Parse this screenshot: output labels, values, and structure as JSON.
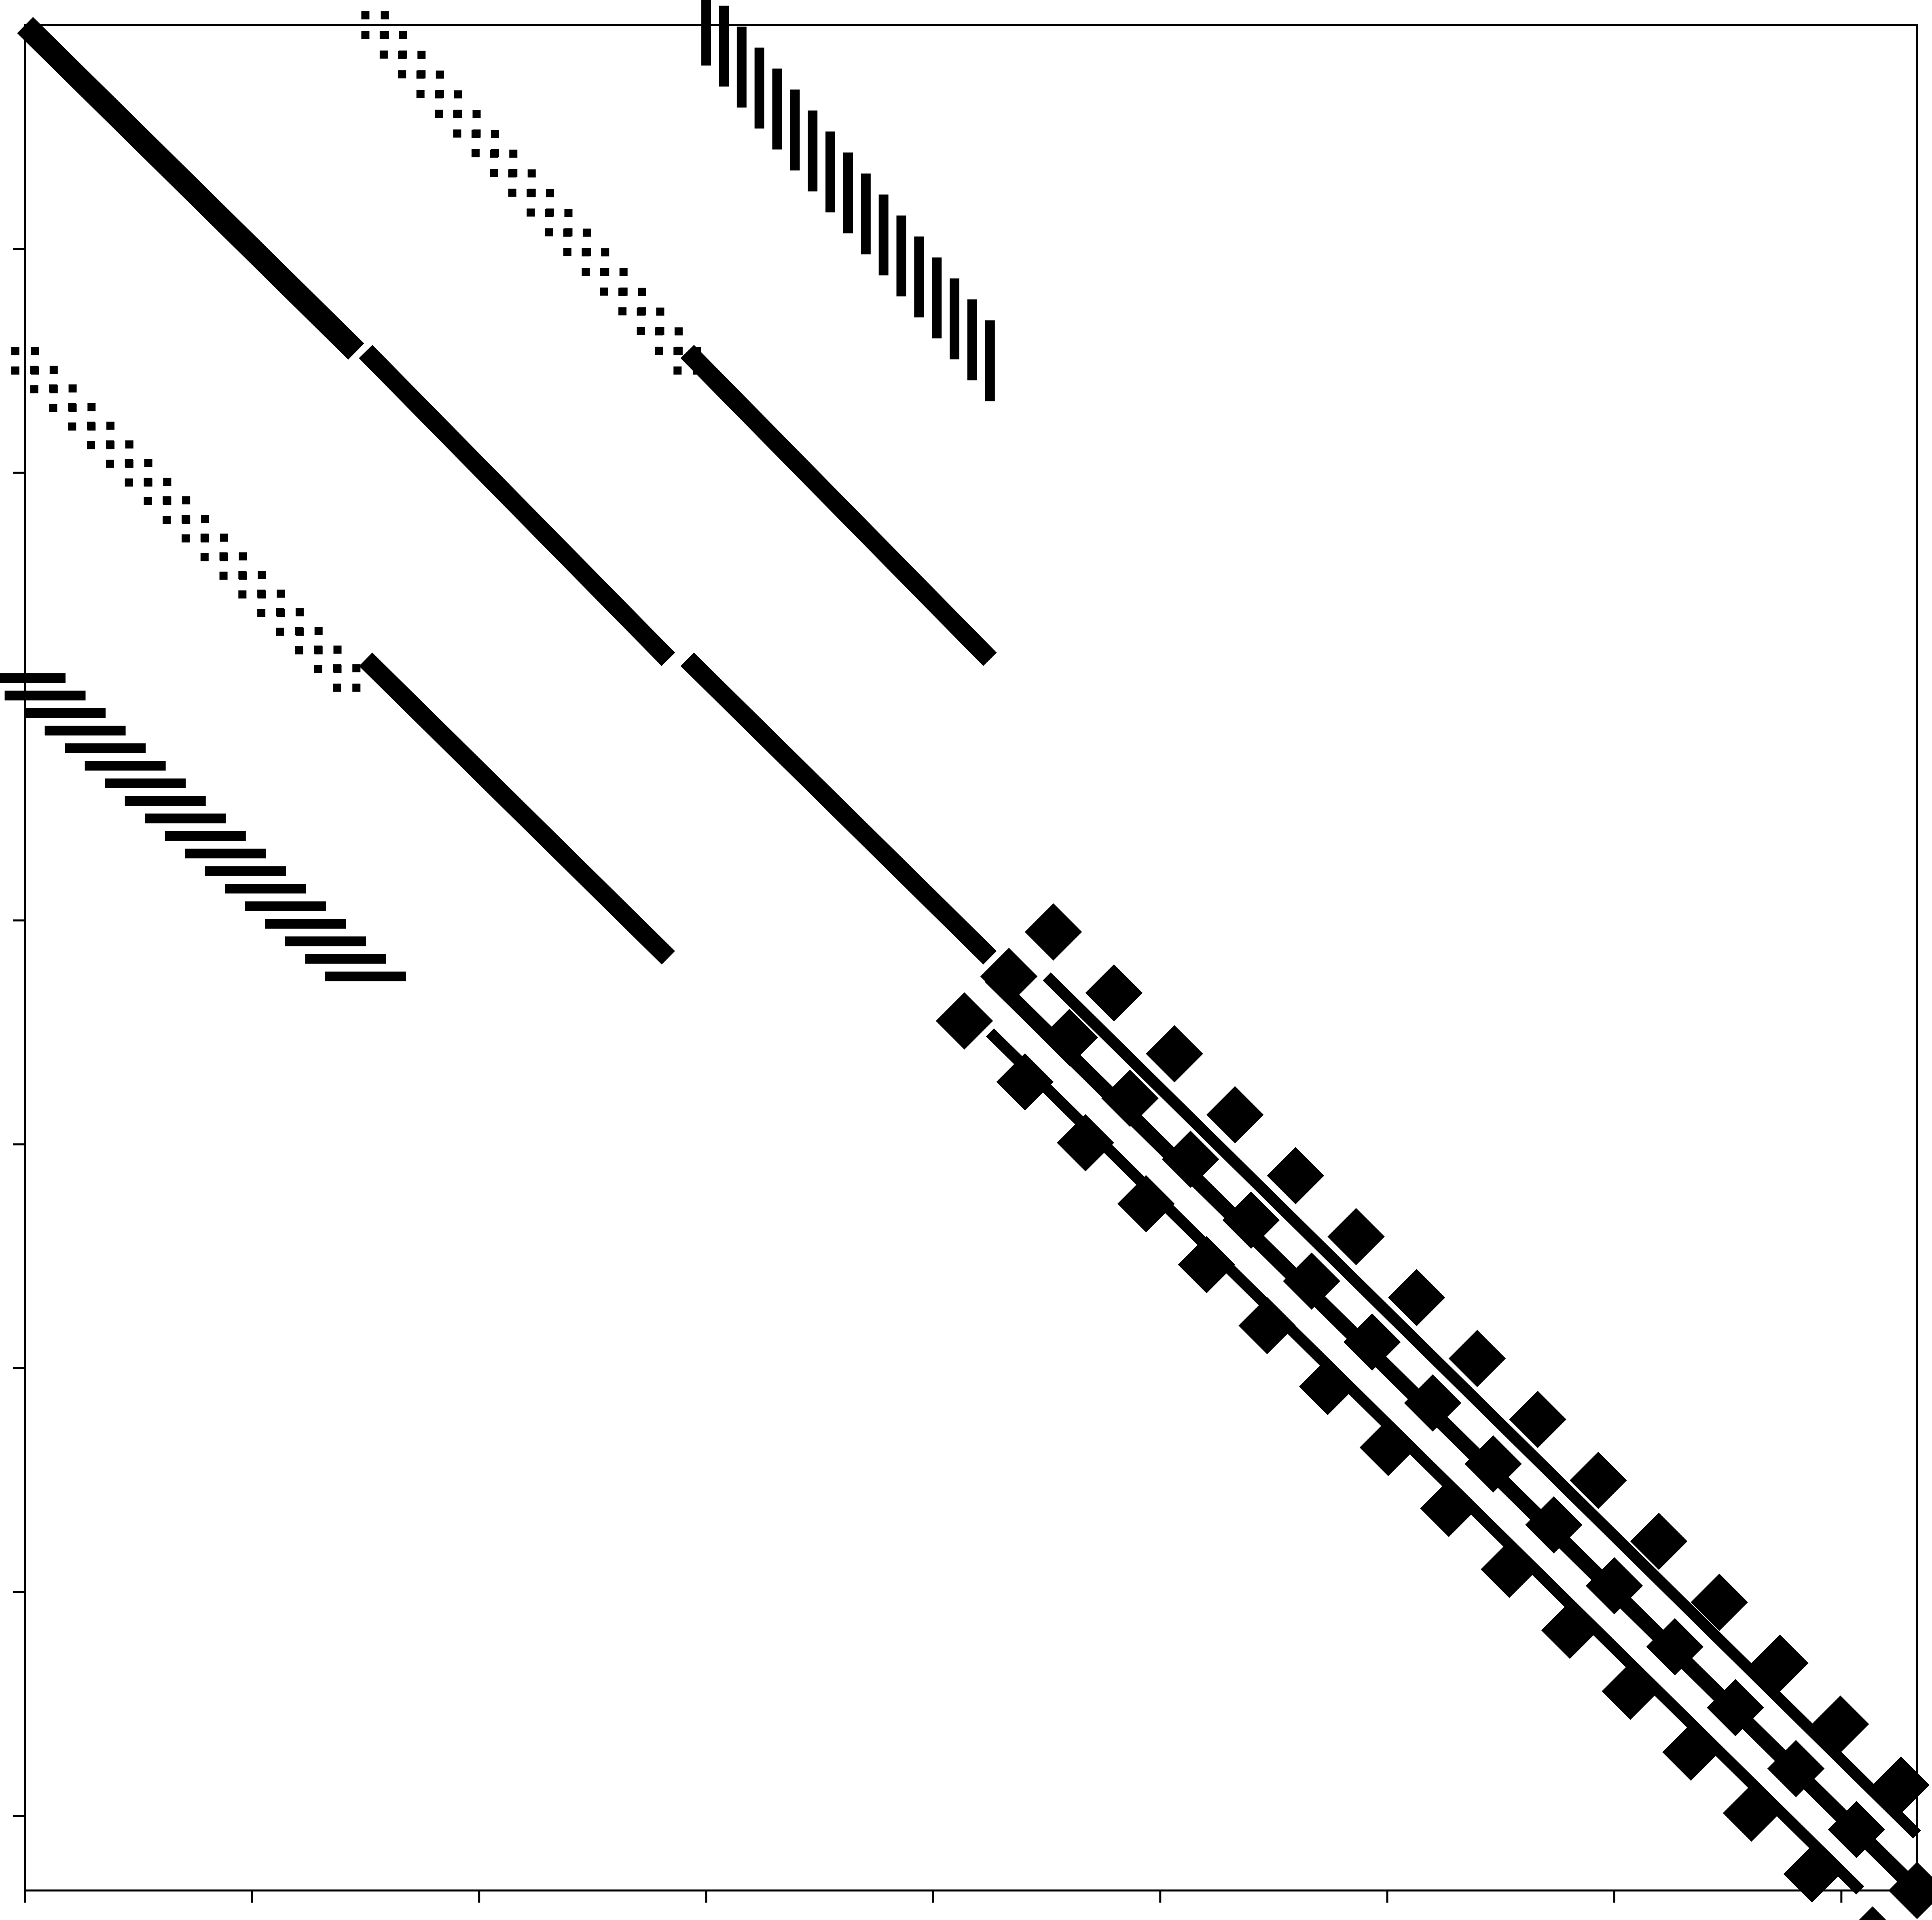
{
  "chart_data": {
    "type": "spy",
    "title": "",
    "xlabel": "",
    "ylabel": "",
    "tick_labels_shown": false,
    "grid": false,
    "legend": "none",
    "marker_color": "#000000",
    "background_color": "#ffffff",
    "frame_color": "#000000",
    "xlim": [
      0,
      1
    ],
    "ylim": [
      1,
      0
    ],
    "x_major_ticks": [
      0,
      0.12,
      0.24,
      0.36,
      0.48,
      0.6,
      0.72,
      0.84,
      0.96
    ],
    "y_major_ticks": [
      0.12,
      0.24,
      0.36,
      0.48,
      0.6,
      0.72,
      0.84,
      0.96
    ],
    "solid_bands": [
      {
        "x": [
          0.0,
          0.175
        ],
        "y": [
          0.0,
          0.175
        ],
        "thickness": 0.012
      },
      {
        "x": [
          0.18,
          0.34
        ],
        "y": [
          0.175,
          0.34
        ],
        "thickness": 0.01
      },
      {
        "x": [
          0.35,
          0.51
        ],
        "y": [
          0.175,
          0.34
        ],
        "thickness": 0.01
      },
      {
        "x": [
          0.18,
          0.34
        ],
        "y": [
          0.34,
          0.5
        ],
        "thickness": 0.01
      },
      {
        "x": [
          0.35,
          0.51
        ],
        "y": [
          0.34,
          0.5
        ],
        "thickness": 0.01
      },
      {
        "x": [
          0.51,
          1.0
        ],
        "y": [
          0.51,
          1.0
        ],
        "thickness": 0.008
      },
      {
        "x": [
          0.51,
          0.97
        ],
        "y": [
          0.54,
          1.0
        ],
        "thickness": 0.006
      },
      {
        "x": [
          0.54,
          1.0
        ],
        "y": [
          0.51,
          0.97
        ],
        "thickness": 0.006
      }
    ],
    "dotted_bands": [
      {
        "x": [
          0.185,
          0.35
        ],
        "y": [
          0.0,
          0.18
        ],
        "count": 18
      },
      {
        "x": [
          0.0,
          0.17
        ],
        "y": [
          0.18,
          0.35
        ],
        "count": 18
      }
    ],
    "dash_bands": [
      {
        "x": [
          0.36,
          0.51
        ],
        "y": [
          0.0,
          0.18
        ],
        "count": 17,
        "orientation": "vertical"
      },
      {
        "x": [
          0.0,
          0.18
        ],
        "y": [
          0.35,
          0.51
        ],
        "count": 18,
        "orientation": "horizontal"
      }
    ],
    "cross_blocks": {
      "x": [
        0.52,
        1.0
      ],
      "y": [
        0.51,
        1.0
      ],
      "count": 16
    }
  }
}
